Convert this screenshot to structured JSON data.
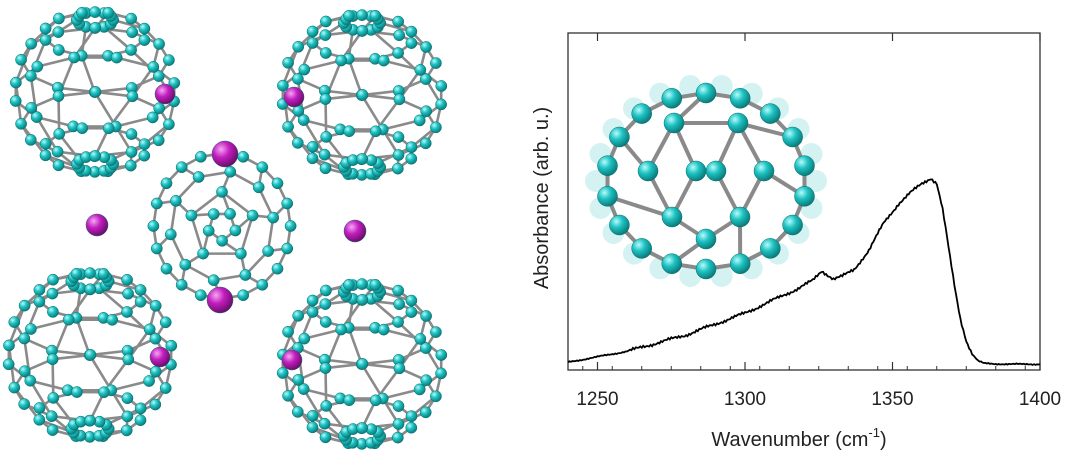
{
  "figure": {
    "left_panel": "crystal-structure-rendering",
    "inset": "molecule-end-on-view"
  },
  "colors": {
    "carbon": "#1ec2c2",
    "carbon_highlight": "#b8fbfb",
    "bond": "#8a8a8a",
    "dopant": "#c21fbf",
    "dopant_highlight": "#f6a6f3",
    "curve": "#000000"
  },
  "chart_data": {
    "type": "line",
    "title": "",
    "xlabel": "Wavenumber (cm",
    "xlabel_sup": "-1",
    "xlabel_end": ")",
    "ylabel": "Absorbance (arb. u.)",
    "xlim": [
      1240,
      1400
    ],
    "ylim": [
      0,
      1
    ],
    "x_ticks": [
      1250,
      1300,
      1350,
      1400
    ],
    "y_ticks_labeled": false,
    "grid": false,
    "series": [
      {
        "x": [
          1240,
          1250,
          1260,
          1270,
          1280,
          1290,
          1300,
          1310,
          1318,
          1323,
          1326,
          1328,
          1330,
          1333,
          1337,
          1342,
          1347,
          1352,
          1356,
          1360,
          1363,
          1365,
          1367,
          1369,
          1371,
          1373,
          1375,
          1377,
          1379,
          1381,
          1385,
          1390,
          1400
        ],
        "y": [
          0.01,
          0.03,
          0.05,
          0.08,
          0.11,
          0.15,
          0.19,
          0.24,
          0.28,
          0.31,
          0.345,
          0.33,
          0.315,
          0.325,
          0.35,
          0.42,
          0.52,
          0.59,
          0.63,
          0.665,
          0.685,
          0.665,
          0.57,
          0.43,
          0.29,
          0.17,
          0.09,
          0.04,
          0.015,
          0.006,
          0.004,
          0.003,
          0.003
        ]
      }
    ]
  }
}
